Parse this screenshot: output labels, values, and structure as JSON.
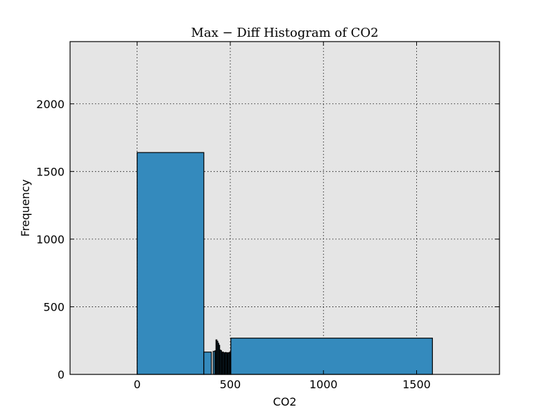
{
  "chart_data": {
    "type": "bar",
    "title": "Max − Diff Histogram of CO2",
    "xlabel": "CO2",
    "ylabel": "Frequency",
    "xlim": [
      -360,
      1945
    ],
    "ylim": [
      0,
      2460
    ],
    "xticks": [
      0,
      500,
      1000,
      1500
    ],
    "yticks": [
      0,
      500,
      1000,
      1500,
      2000
    ],
    "grid": true,
    "colors": {
      "bar": "#348abd",
      "plot_bg": "#e5e5e5",
      "edge": "#000000"
    },
    "bins": [
      {
        "x0": 0,
        "x1": 358,
        "count": 1640
      },
      {
        "x0": 358,
        "x1": 398,
        "count": 165
      },
      {
        "x0": 398,
        "x1": 408,
        "count": 0
      },
      {
        "x0": 408,
        "x1": 418,
        "count": 170
      },
      {
        "x0": 418,
        "x1": 423,
        "count": 175
      },
      {
        "x0": 423,
        "x1": 428,
        "count": 255
      },
      {
        "x0": 428,
        "x1": 433,
        "count": 245
      },
      {
        "x0": 433,
        "x1": 438,
        "count": 230
      },
      {
        "x0": 438,
        "x1": 443,
        "count": 215
      },
      {
        "x0": 443,
        "x1": 448,
        "count": 180
      },
      {
        "x0": 448,
        "x1": 453,
        "count": 175
      },
      {
        "x0": 453,
        "x1": 458,
        "count": 160
      },
      {
        "x0": 458,
        "x1": 463,
        "count": 165
      },
      {
        "x0": 463,
        "x1": 468,
        "count": 160
      },
      {
        "x0": 468,
        "x1": 473,
        "count": 158
      },
      {
        "x0": 473,
        "x1": 478,
        "count": 162
      },
      {
        "x0": 478,
        "x1": 483,
        "count": 158
      },
      {
        "x0": 483,
        "x1": 488,
        "count": 160
      },
      {
        "x0": 488,
        "x1": 493,
        "count": 156
      },
      {
        "x0": 493,
        "x1": 498,
        "count": 162
      },
      {
        "x0": 498,
        "x1": 503,
        "count": 165
      },
      {
        "x0": 503,
        "x1": 1585,
        "count": 268
      }
    ]
  }
}
